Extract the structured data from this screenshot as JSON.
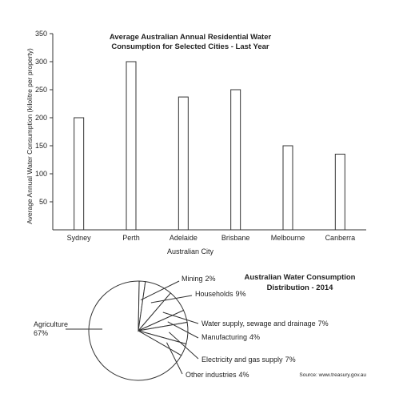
{
  "chart_data": [
    {
      "type": "bar",
      "title": [
        "Average Australian Annual Residential Water",
        "Consumption for Selected Cities - Last Year"
      ],
      "categories": [
        "Sydney",
        "Perth",
        "Adelaide",
        "Brisbane",
        "Melbourne",
        "Canberra"
      ],
      "values": [
        200,
        300,
        237,
        250,
        150,
        135
      ],
      "xlabel": "Australian City",
      "ylabel": "Average Annual Water Consumption (kilolitre per property)",
      "yticks": [
        50,
        100,
        150,
        200,
        250,
        300,
        350
      ],
      "ylim": [
        0,
        350
      ],
      "grid": false
    },
    {
      "type": "pie",
      "title": [
        "Australian Water Consumption",
        "Distribution - 2014"
      ],
      "slices": [
        {
          "label": "Agriculture",
          "value_label": "67%",
          "value": 67
        },
        {
          "label": "Mining",
          "value_label": "2%",
          "value": 2
        },
        {
          "label": "Households",
          "value_label": "9%",
          "value": 9
        },
        {
          "label": "Water supply, sewage and drainage",
          "value_label": "7%",
          "value": 7
        },
        {
          "label": "Manufacturing",
          "value_label": "4%",
          "value": 4
        },
        {
          "label": "Electricity and gas supply",
          "value_label": "7%",
          "value": 7
        },
        {
          "label": "Other industries",
          "value_label": "4%",
          "value": 4
        }
      ],
      "source": "Source: www.treasury.gov.au"
    }
  ]
}
